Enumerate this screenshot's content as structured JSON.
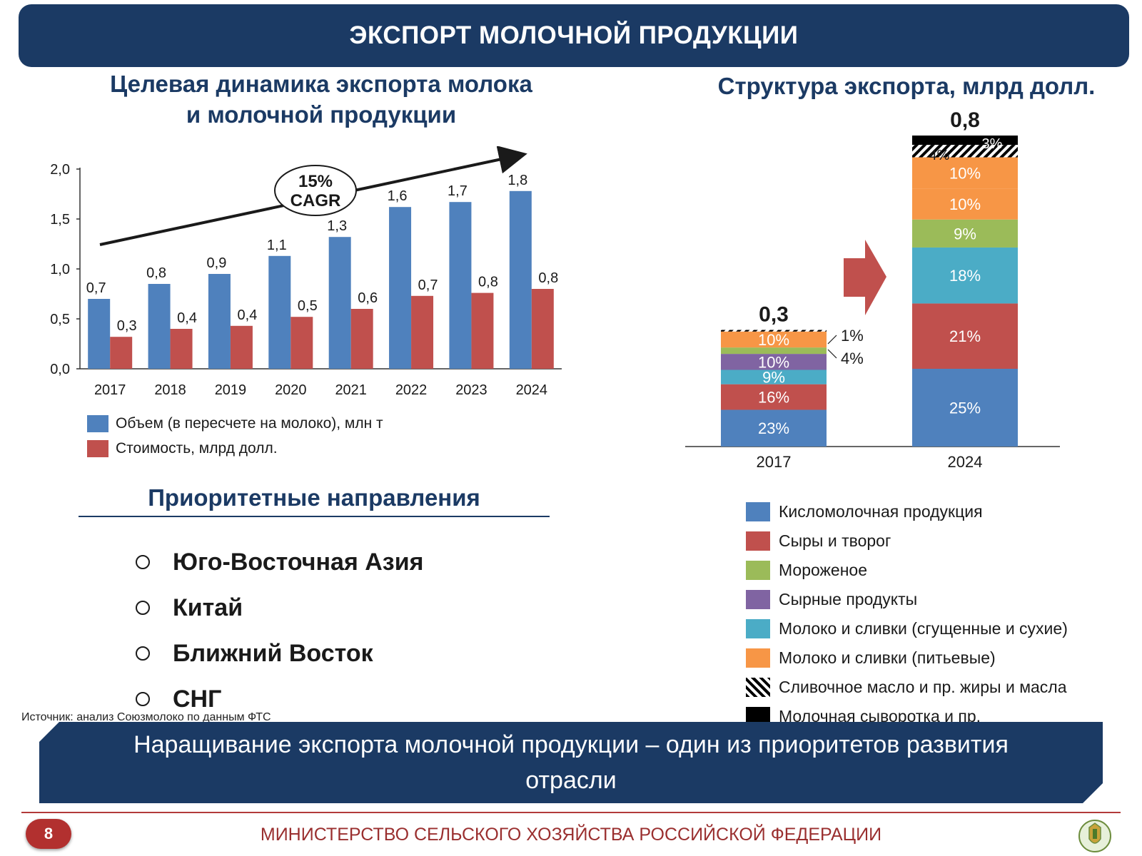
{
  "header": {
    "title": "ЭКСПОРТ МОЛОЧНОЙ ПРОДУКЦИИ"
  },
  "left": {
    "title": "Целевая динамика экспорта молока и молочной продукции",
    "legend": [
      {
        "label": "Объем (в пересчете на молоко), млн т",
        "color": "#4f81bd"
      },
      {
        "label": "Стоимость, млрд долл.",
        "color": "#c0504d"
      }
    ],
    "priority_title": "Приоритетные направления",
    "priorities": [
      "Юго-Восточная Азия",
      "Китай",
      "Ближний Восток",
      "СНГ"
    ],
    "source": "Источник: анализ Союзмолоко по данным ФТС"
  },
  "right": {
    "title": "Структура экспорта, млрд долл.",
    "legend": [
      {
        "label": "Кисломолочная продукция",
        "color": "#4f81bd",
        "pattern": "solid"
      },
      {
        "label": "Сыры и творог",
        "color": "#c0504d",
        "pattern": "solid"
      },
      {
        "label": "Мороженое",
        "color": "#9bbb59",
        "pattern": "solid"
      },
      {
        "label": "Сырные продукты",
        "color": "#8064a2",
        "pattern": "solid"
      },
      {
        "label": "Молоко и сливки (сгущенные и сухие)",
        "color": "#4bacc6",
        "pattern": "solid"
      },
      {
        "label": "Молоко и сливки (питьевые)",
        "color": "#f79646",
        "pattern": "solid"
      },
      {
        "label": "Сливочное масло и пр. жиры и масла",
        "color": "#000000",
        "pattern": "hatched"
      },
      {
        "label": "Молочная сыворотка и пр.",
        "color": "#000000",
        "pattern": "solid"
      }
    ]
  },
  "banner": {
    "text": "Наращивание экспорта молочной продукции – один из приоритетов развития отрасли"
  },
  "footer": {
    "page": "8",
    "ministry": "МИНИСТЕРСТВО СЕЛЬСКОГО ХОЗЯЙСТВА РОССИЙСКОЙ ФЕДЕРАЦИИ"
  },
  "chart_data": [
    {
      "type": "bar",
      "categories": [
        "2017",
        "2018",
        "2019",
        "2020",
        "2021",
        "2022",
        "2023",
        "2024"
      ],
      "series": [
        {
          "name": "Объем (в пересчете на молоко), млн т",
          "color": "#4f81bd",
          "values": [
            0.7,
            0.85,
            0.95,
            1.13,
            1.32,
            1.62,
            1.67,
            1.78
          ],
          "labels": [
            "0,7",
            "0,8",
            "0,9",
            "1,1",
            "1,3",
            "1,6",
            "1,7",
            "1,8"
          ]
        },
        {
          "name": "Стоимость, млрд долл.",
          "color": "#c0504d",
          "values": [
            0.32,
            0.4,
            0.43,
            0.52,
            0.6,
            0.73,
            0.76,
            0.8
          ],
          "labels": [
            "0,3",
            "0,4",
            "0,4",
            "0,5",
            "0,6",
            "0,7",
            "0,8",
            "0,8"
          ]
        }
      ],
      "ylim": [
        0,
        2.0
      ],
      "yticks": [
        "0,0",
        "0,5",
        "1,0",
        "1,5",
        "2,0"
      ],
      "annotation": "15% CAGR",
      "legend": "bottom"
    },
    {
      "type": "bar",
      "stacked": true,
      "categories": [
        "2017",
        "2024"
      ],
      "totals": [
        0.3,
        0.8
      ],
      "total_labels": [
        "0,3",
        "0,8"
      ],
      "segments": [
        {
          "category": "2017",
          "items": [
            {
              "series": "Кисломолочная продукция",
              "pct": 23,
              "label": "23%"
            },
            {
              "series": "Сыры и творог",
              "pct": 16,
              "label": "16%"
            },
            {
              "series": "Молоко и сливки (сгущенные и сухие)",
              "pct": 9,
              "label": "9%"
            },
            {
              "series": "Сырные продукты",
              "pct": 10,
              "label": "10%"
            },
            {
              "series": "Мороженое",
              "pct": 4,
              "label": "4%"
            },
            {
              "series": "Молоко и сливки (питьевые)",
              "pct": 10,
              "label": "10%"
            },
            {
              "series": "Сливочное масло и пр. жиры и масла",
              "pct": 1,
              "label": "1%"
            }
          ]
        },
        {
          "category": "2024",
          "items": [
            {
              "series": "Кисломолочная продукция",
              "pct": 25,
              "label": "25%"
            },
            {
              "series": "Сыры и творог",
              "pct": 21,
              "label": "21%"
            },
            {
              "series": "Молоко и сливки (сгущенные и сухие)",
              "pct": 18,
              "label": "18%"
            },
            {
              "series": "Мороженое",
              "pct": 9,
              "label": "9%"
            },
            {
              "series": "Молоко и сливки (питьевые)",
              "pct": 10,
              "label": "10%"
            },
            {
              "series": "Молоко и сливки (питьевые)",
              "pct": 10,
              "label": "10%"
            },
            {
              "series": "Сливочное масло и пр. жиры и масла",
              "pct": 4,
              "label": "4%"
            },
            {
              "series": "Молочная сыворотка и пр.",
              "pct": 3,
              "label": "3%"
            }
          ]
        }
      ]
    }
  ]
}
